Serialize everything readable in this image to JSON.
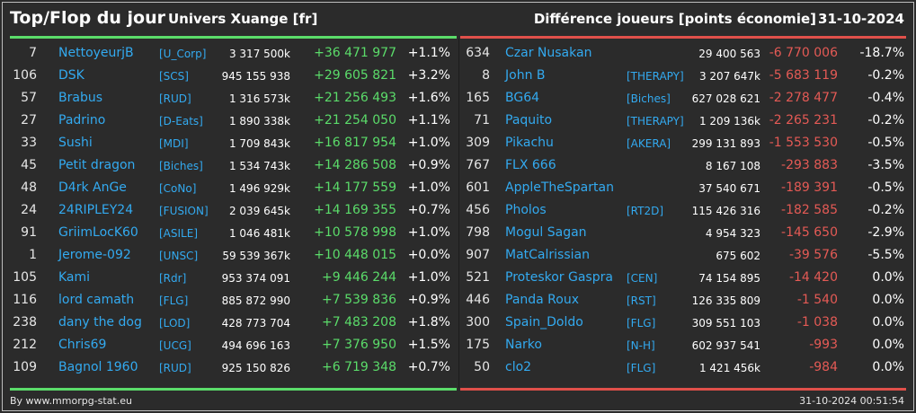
{
  "header": {
    "title": "Top/Flop du jour",
    "universe": "Univers Xuange [fr]",
    "metric": "Différence joueurs [points économie]",
    "date": "31-10-2024"
  },
  "colors": {
    "gain": "#5bdc6a",
    "loss": "#e45a55",
    "player_link": "#33aaf0",
    "background": "#2b2b2b"
  },
  "top_rows": [
    {
      "rank": "7",
      "name": "NettoyeurjB",
      "alliance": "[U_Corp]",
      "points": "3 317 500k",
      "diff": "+36 471 977",
      "pct": "+1.1%"
    },
    {
      "rank": "106",
      "name": "DSK",
      "alliance": "[SCS]",
      "points": "945 155 938",
      "diff": "+29 605 821",
      "pct": "+3.2%"
    },
    {
      "rank": "57",
      "name": "Brabus",
      "alliance": "[RUD]",
      "points": "1 316 573k",
      "diff": "+21 256 493",
      "pct": "+1.6%"
    },
    {
      "rank": "27",
      "name": "Padrino",
      "alliance": "[D-Eats]",
      "points": "1 890 338k",
      "diff": "+21 254 050",
      "pct": "+1.1%"
    },
    {
      "rank": "33",
      "name": "Sushi",
      "alliance": "[MDI]",
      "points": "1 709 843k",
      "diff": "+16 817 954",
      "pct": "+1.0%"
    },
    {
      "rank": "45",
      "name": "Petit dragon",
      "alliance": "[Biches]",
      "points": "1 534 743k",
      "diff": "+14 286 508",
      "pct": "+0.9%"
    },
    {
      "rank": "48",
      "name": "D4rk AnGe",
      "alliance": "[CoNo]",
      "points": "1 496 929k",
      "diff": "+14 177 559",
      "pct": "+1.0%"
    },
    {
      "rank": "24",
      "name": "24RIPLEY24",
      "alliance": "[FUSION]",
      "points": "2 039 645k",
      "diff": "+14 169 355",
      "pct": "+0.7%"
    },
    {
      "rank": "91",
      "name": "GriimLocK60",
      "alliance": "[ASILE]",
      "points": "1 046 481k",
      "diff": "+10 578 998",
      "pct": "+1.0%"
    },
    {
      "rank": "1",
      "name": "Jerome-092",
      "alliance": "[UNSC]",
      "points": "59 539 367k",
      "diff": "+10 448 015",
      "pct": "+0.0%"
    },
    {
      "rank": "105",
      "name": "Kami",
      "alliance": "[Rdr]",
      "points": "953 374 091",
      "diff": "+9 446 244",
      "pct": "+1.0%"
    },
    {
      "rank": "116",
      "name": "lord camath",
      "alliance": "[FLG]",
      "points": "885 872 990",
      "diff": "+7 539 836",
      "pct": "+0.9%"
    },
    {
      "rank": "238",
      "name": "dany the dog",
      "alliance": "[LOD]",
      "points": "428 773 704",
      "diff": "+7 483 208",
      "pct": "+1.8%"
    },
    {
      "rank": "212",
      "name": "Chris69",
      "alliance": "[UCG]",
      "points": "494 696 163",
      "diff": "+7 376 950",
      "pct": "+1.5%"
    },
    {
      "rank": "109",
      "name": "Bagnol 1960",
      "alliance": "[RUD]",
      "points": "925 150 826",
      "diff": "+6 719 348",
      "pct": "+0.7%"
    }
  ],
  "flop_rows": [
    {
      "rank": "634",
      "name": "Czar Nusakan",
      "alliance": "",
      "points": "29 400 563",
      "diff": "-6 770 006",
      "pct": "-18.7%"
    },
    {
      "rank": "8",
      "name": "John B",
      "alliance": "[THERAPY]",
      "points": "3 207 647k",
      "diff": "-5 683 119",
      "pct": "-0.2%"
    },
    {
      "rank": "165",
      "name": "BG64",
      "alliance": "[Biches]",
      "points": "627 028 621",
      "diff": "-2 278 477",
      "pct": "-0.4%"
    },
    {
      "rank": "71",
      "name": "Paquito",
      "alliance": "[THERAPY]",
      "points": "1 209 136k",
      "diff": "-2 265 231",
      "pct": "-0.2%"
    },
    {
      "rank": "309",
      "name": "Pikachu",
      "alliance": "[AKERA]",
      "points": "299 131 893",
      "diff": "-1 553 530",
      "pct": "-0.5%"
    },
    {
      "rank": "767",
      "name": "FLX 666",
      "alliance": "",
      "points": "8 167 108",
      "diff": "-293 883",
      "pct": "-3.5%"
    },
    {
      "rank": "601",
      "name": "AppleTheSpartan",
      "alliance": "",
      "points": "37 540 671",
      "diff": "-189 391",
      "pct": "-0.5%"
    },
    {
      "rank": "456",
      "name": "Pholos",
      "alliance": "[RT2D]",
      "points": "115 426 316",
      "diff": "-182 585",
      "pct": "-0.2%"
    },
    {
      "rank": "798",
      "name": "Mogul Sagan",
      "alliance": "",
      "points": "4 954 323",
      "diff": "-145 650",
      "pct": "-2.9%"
    },
    {
      "rank": "907",
      "name": "MatCalrissian",
      "alliance": "",
      "points": "675 602",
      "diff": "-39 576",
      "pct": "-5.5%"
    },
    {
      "rank": "521",
      "name": "Proteskor Gaspra",
      "alliance": "[CEN]",
      "points": "74 154 895",
      "diff": "-14 420",
      "pct": "0.0%"
    },
    {
      "rank": "446",
      "name": "Panda Roux",
      "alliance": "[RST]",
      "points": "126 335 809",
      "diff": "-1 540",
      "pct": "0.0%"
    },
    {
      "rank": "300",
      "name": "Spain_Doldo",
      "alliance": "[FLG]",
      "points": "309 551 103",
      "diff": "-1 038",
      "pct": "0.0%"
    },
    {
      "rank": "175",
      "name": "Narko",
      "alliance": "[N-H]",
      "points": "602 937 541",
      "diff": "-993",
      "pct": "0.0%"
    },
    {
      "rank": "50",
      "name": "clo2",
      "alliance": "[FLG]",
      "points": "1 421 456k",
      "diff": "-984",
      "pct": "0.0%"
    }
  ],
  "footer": {
    "source": "By www.mmorpg-stat.eu",
    "timestamp": "31-10-2024 00:51:54"
  }
}
